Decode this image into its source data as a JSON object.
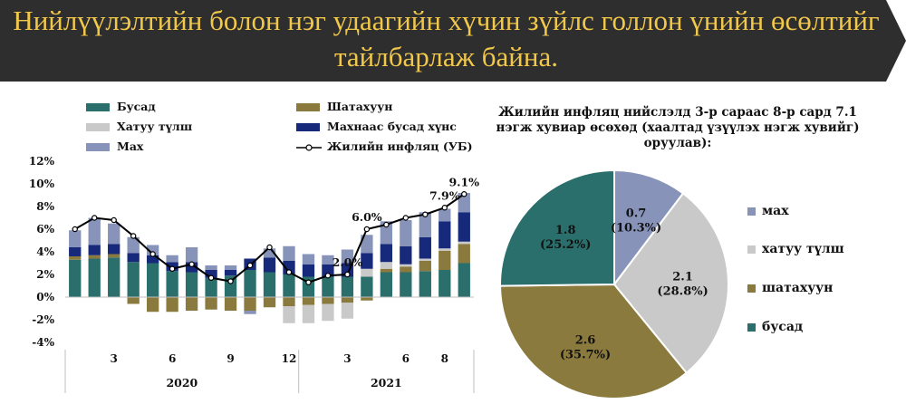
{
  "header": {
    "title_line1": "Нийлүүлэлтийн болон нэг удаагийн хүчин зүйлс голлон үнийн өсөлтийг",
    "title_line2": "тайлбарлаж байна.",
    "background_color": "#2e2e2e",
    "text_color": "#f2c84b"
  },
  "chart_data": [
    {
      "type": "bar",
      "subtype": "stacked bar with line",
      "x_tick_labels": [
        "3",
        "6",
        "9",
        "12",
        "3",
        "6",
        "8"
      ],
      "x_tick_months": [
        3,
        6,
        9,
        12,
        15,
        18,
        20
      ],
      "year_labels": [
        "2020",
        "2021"
      ],
      "y_tick_labels": [
        "-4%",
        "-2%",
        "0%",
        "2%",
        "4%",
        "6%",
        "8%",
        "10%",
        "12%"
      ],
      "ylim": [
        -4,
        12
      ],
      "legend": [
        {
          "key": "busad",
          "label": "Бусад",
          "color": "#2a6f6c"
        },
        {
          "key": "shatakhuun",
          "label": "Шатахуун",
          "color": "#8b7a3e"
        },
        {
          "key": "khatuu",
          "label": "Хатуу түлш",
          "color": "#c9c9c9"
        },
        {
          "key": "makhnaas",
          "label": "Махнаас бусад хүнс",
          "color": "#16297a"
        },
        {
          "key": "makh",
          "label": "Мах",
          "color": "#8793b9"
        },
        {
          "key": "inflation",
          "label": "Жилийн инфляц (УБ)",
          "color": "#000000"
        }
      ],
      "series": [
        {
          "name": "Бусад",
          "key": "busad",
          "values": [
            3.3,
            3.4,
            3.5,
            3.1,
            3.0,
            2.3,
            2.2,
            1.7,
            1.9,
            2.4,
            2.2,
            2.0,
            1.8,
            1.8,
            1.8,
            1.8,
            2.2,
            2.2,
            2.3,
            2.4,
            3.0
          ]
        },
        {
          "name": "Шатахуун",
          "key": "shatakhuun",
          "values": [
            0.3,
            0.3,
            0.3,
            -0.6,
            -1.3,
            -1.3,
            -1.2,
            -1.1,
            -1.2,
            -1.2,
            -0.9,
            -0.8,
            -0.7,
            -0.6,
            -0.5,
            -0.3,
            0.3,
            0.5,
            0.9,
            1.7,
            1.7
          ]
        },
        {
          "name": "Хатуу түлш",
          "key": "khatuu",
          "values": [
            0,
            0,
            0,
            0,
            0,
            0,
            0,
            0,
            0,
            0,
            0,
            -1.5,
            -1.6,
            -1.5,
            -1.4,
            0.7,
            0.6,
            0.2,
            0.2,
            0.2,
            0.2
          ]
        },
        {
          "name": "Махнаас бусад хүнс",
          "key": "makhnaas",
          "values": [
            0.8,
            0.9,
            0.9,
            0.8,
            0.7,
            0.8,
            0.9,
            0.7,
            0.5,
            1.0,
            1.3,
            1.2,
            1.1,
            1.1,
            1.2,
            1.4,
            1.6,
            1.6,
            1.9,
            2.4,
            2.6
          ]
        },
        {
          "name": "Мах",
          "key": "makh",
          "values": [
            1.5,
            2.4,
            1.8,
            1.4,
            0.9,
            0.6,
            1.3,
            0.4,
            0.4,
            -0.3,
            0.8,
            1.3,
            0.9,
            0.8,
            1.2,
            1.6,
            2.0,
            2.3,
            2.2,
            1.1,
            1.7
          ]
        },
        {
          "name": "Жилийн инфляц (УБ)",
          "key": "inflation",
          "type": "line",
          "values": [
            6.0,
            7.0,
            6.8,
            5.4,
            3.8,
            2.5,
            2.9,
            1.7,
            1.4,
            2.8,
            4.4,
            2.2,
            1.3,
            1.9,
            2.0,
            6.0,
            6.4,
            7.0,
            7.3,
            7.9,
            9.1
          ]
        }
      ],
      "annotations": [
        {
          "month": 15,
          "value": 2.0,
          "label": "2.0%"
        },
        {
          "month": 16,
          "value": 6.0,
          "label": "6.0%"
        },
        {
          "month": 20,
          "value": 7.9,
          "label": "7.9%"
        },
        {
          "month": 21,
          "value": 9.1,
          "label": "9.1%"
        }
      ],
      "grid": false
    },
    {
      "type": "pie",
      "title": "Жилийн инфляц нийслэлд 3-р сараас 8-р сард 7.1 нэгж хувиар өсөхөд (хаалтад үзүүлэх нэгж хувийг) оруулав):",
      "slices": [
        {
          "label": "мах",
          "value": 0.7,
          "percent": 10.3,
          "value_text": "0.7",
          "percent_text": "(10.3%)",
          "color": "#8793b9"
        },
        {
          "label": "хатуу түлш",
          "value": 2.1,
          "percent": 28.8,
          "value_text": "2.1",
          "percent_text": "(28.8%)",
          "color": "#c9c9c9"
        },
        {
          "label": "шатахуун",
          "value": 2.6,
          "percent": 35.7,
          "value_text": "2.6",
          "percent_text": "(35.7%)",
          "color": "#8b7a3e"
        },
        {
          "label": "бусад",
          "value": 1.8,
          "percent": 25.2,
          "value_text": "1.8",
          "percent_text": "(25.2%)",
          "color": "#2a6f6c"
        }
      ],
      "legend_placement": "right"
    }
  ]
}
